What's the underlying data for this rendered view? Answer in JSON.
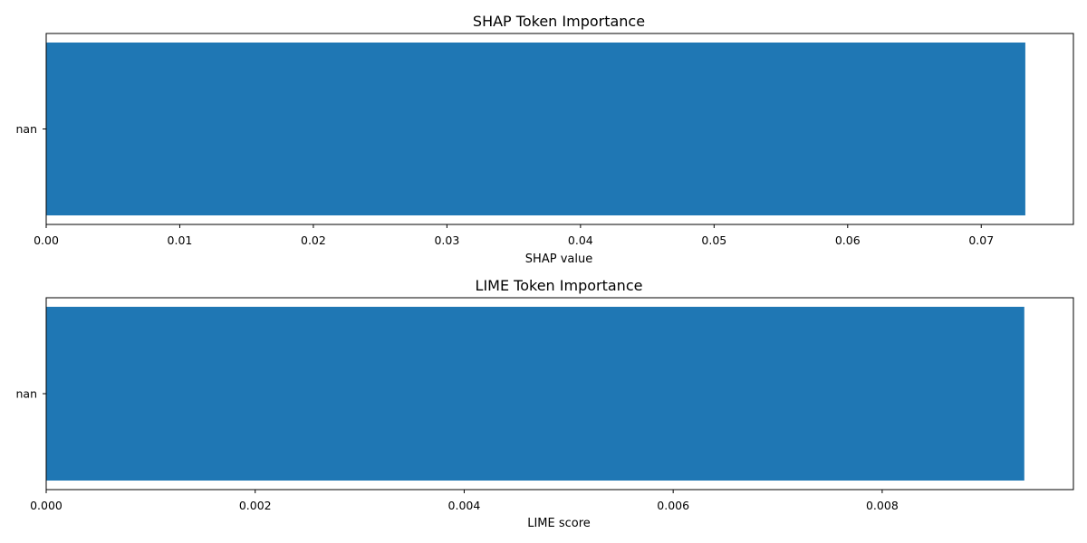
{
  "colors": {
    "bar": "#1f77b4",
    "axis": "#000000",
    "background": "#ffffff"
  },
  "chart_data": [
    {
      "type": "bar",
      "orientation": "horizontal",
      "title": "SHAP Token Importance",
      "xlabel": "SHAP value",
      "ylabel": "",
      "categories": [
        "nan"
      ],
      "values": [
        0.0733
      ],
      "xlim": [
        0,
        0.0769
      ],
      "xticks": [
        0,
        0.01,
        0.02,
        0.03,
        0.04,
        0.05,
        0.06,
        0.07
      ],
      "xtick_labels": [
        "0.00",
        "0.01",
        "0.02",
        "0.03",
        "0.04",
        "0.05",
        "0.06",
        "0.07"
      ],
      "grid": false
    },
    {
      "type": "bar",
      "orientation": "horizontal",
      "title": "LIME Token Importance",
      "xlabel": "LIME score",
      "ylabel": "",
      "categories": [
        "nan"
      ],
      "values": [
        0.00936
      ],
      "xlim": [
        0,
        0.00983
      ],
      "xticks": [
        0,
        0.002,
        0.004,
        0.006,
        0.008
      ],
      "xtick_labels": [
        "0.000",
        "0.002",
        "0.004",
        "0.006",
        "0.008"
      ],
      "grid": false
    }
  ]
}
